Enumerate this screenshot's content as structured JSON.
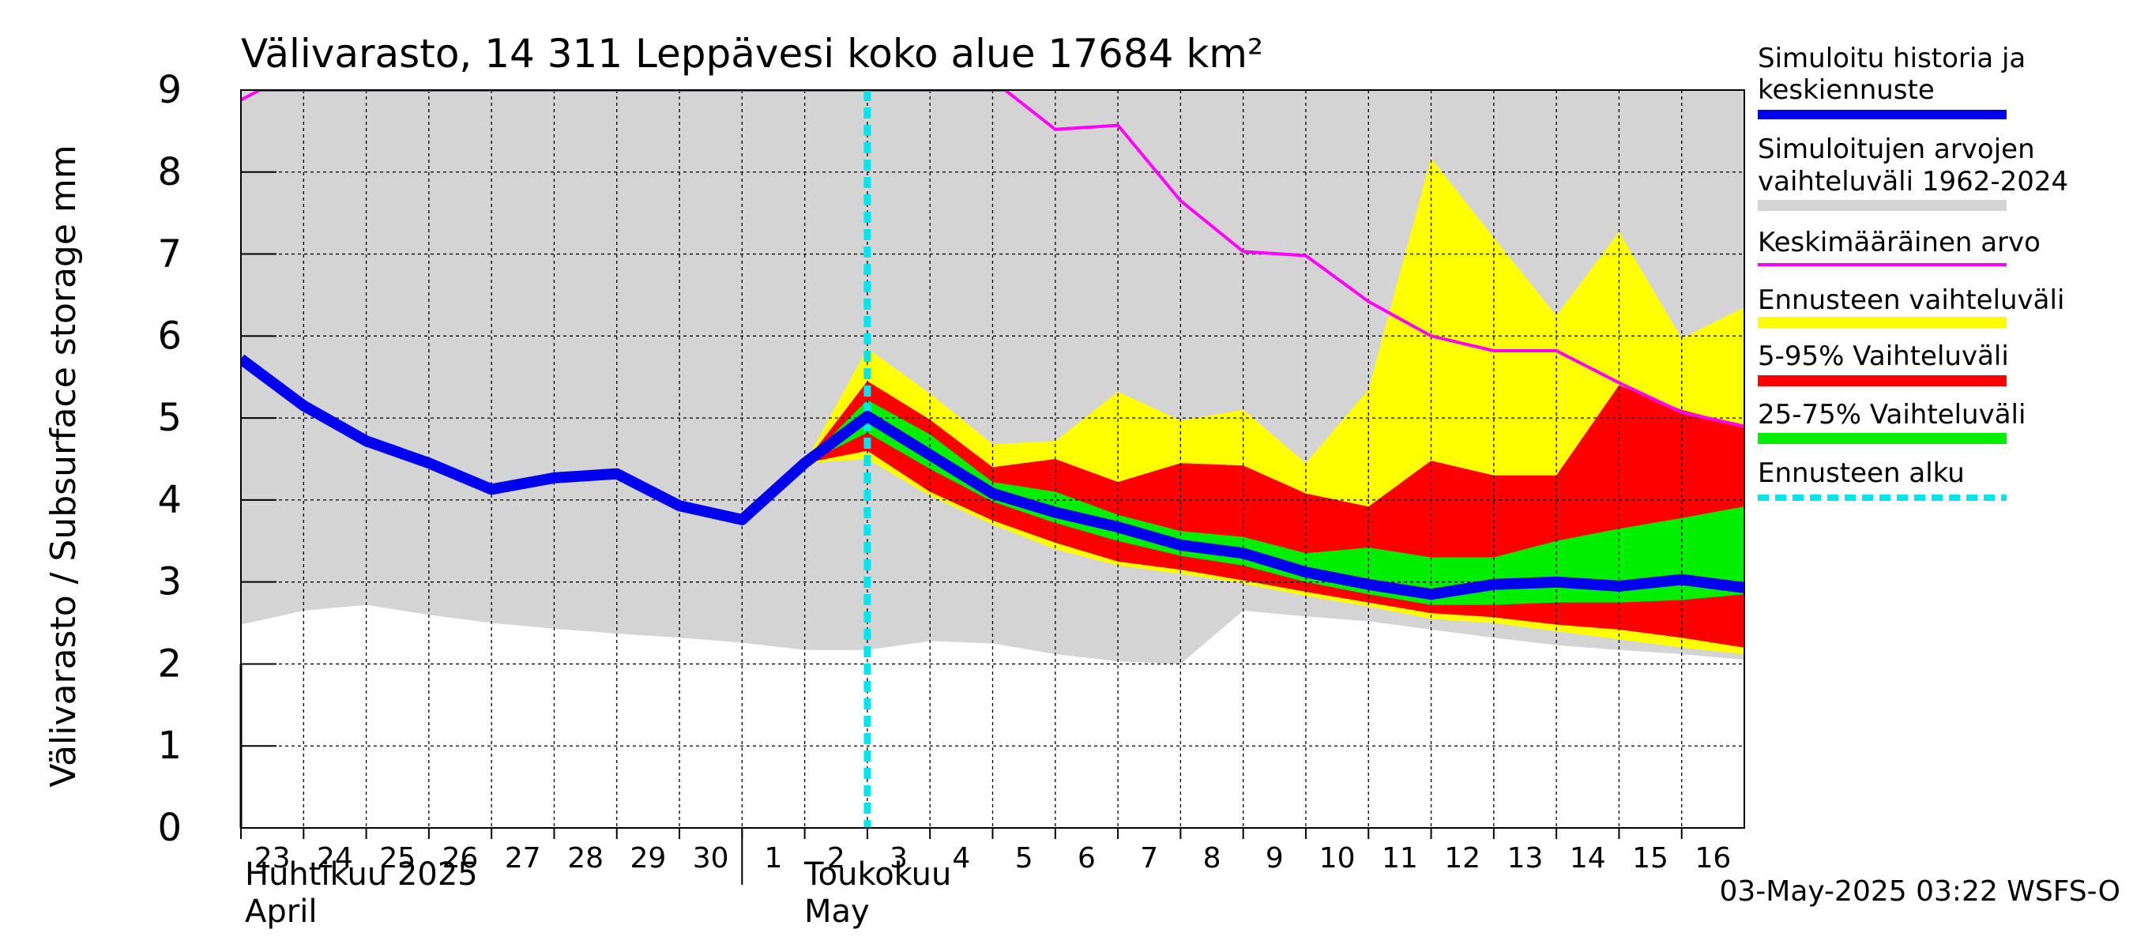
{
  "chart_data": {
    "type": "area",
    "title": "Välivarasto, 14 311 Leppävesi koko alue 17684 km²",
    "ylabel": "Välivarasto / Subsurface storage  mm",
    "ylim": [
      0,
      9
    ],
    "yticks": [
      "0",
      "1",
      "2",
      "3",
      "4",
      "5",
      "6",
      "7",
      "8",
      "9"
    ],
    "x_days": [
      "2025-04-23",
      "2025-04-24",
      "2025-04-25",
      "2025-04-26",
      "2025-04-27",
      "2025-04-28",
      "2025-04-29",
      "2025-04-30",
      "2025-05-01",
      "2025-05-02",
      "2025-05-03",
      "2025-05-04",
      "2025-05-05",
      "2025-05-06",
      "2025-05-07",
      "2025-05-08",
      "2025-05-09",
      "2025-05-10",
      "2025-05-11",
      "2025-05-12",
      "2025-05-13",
      "2025-05-14",
      "2025-05-15",
      "2025-05-16",
      "2025-05-17"
    ],
    "xtick_labels": [
      "23",
      "24",
      "25",
      "26",
      "27",
      "28",
      "29",
      "30",
      "1",
      "2",
      "3",
      "4",
      "5",
      "6",
      "7",
      "8",
      "9",
      "10",
      "11",
      "12",
      "13",
      "14",
      "15",
      "16"
    ],
    "month_labels": [
      {
        "fi": "Huhtikuu  2025",
        "en": "April"
      },
      {
        "fi": "Toukokuu",
        "en": "May"
      }
    ],
    "forecast_start": "2025-05-03",
    "grid": true,
    "legend_position": "right",
    "footer": "03-May-2025 03:22 WSFS-O",
    "legend": [
      {
        "label": "Simuloitu historia ja keskiennuste",
        "color": "#0000ee"
      },
      {
        "label": "Simuloitujen arvojen vaihteluväli 1962-2024",
        "color": "#d4d4d4"
      },
      {
        "label": "Keskimääräinen arvo",
        "color": "#ff00ff"
      },
      {
        "label": "Ennusteen vaihteluväli",
        "color": "#ffff00"
      },
      {
        "label": "5-95% Vaihteluväli",
        "color": "#ff0000"
      },
      {
        "label": "25-75% Vaihteluväli",
        "color": "#00ee00"
      },
      {
        "label": "Ennusteen alku",
        "color": "#00e5ee"
      }
    ],
    "series": [
      {
        "name": "Simuloitu historia ja keskiennuste",
        "x": [
          "2025-04-23",
          "2025-04-24",
          "2025-04-25",
          "2025-04-26",
          "2025-04-27",
          "2025-04-28",
          "2025-04-29",
          "2025-04-30",
          "2025-05-01",
          "2025-05-02",
          "2025-05-03",
          "2025-05-04",
          "2025-05-05",
          "2025-05-06",
          "2025-05-07",
          "2025-05-08",
          "2025-05-09",
          "2025-05-10",
          "2025-05-11",
          "2025-05-12",
          "2025-05-13",
          "2025-05-14",
          "2025-05-15",
          "2025-05-16",
          "2025-05-17"
        ],
        "values": [
          5.72,
          5.15,
          4.72,
          4.45,
          4.13,
          4.27,
          4.32,
          3.93,
          3.76,
          4.45,
          5.02,
          4.55,
          4.08,
          3.85,
          3.67,
          3.45,
          3.35,
          3.12,
          2.97,
          2.85,
          2.97,
          3.0,
          2.95,
          3.03,
          2.93
        ]
      },
      {
        "name": "Keskimääräinen arvo",
        "x": [
          "2025-04-23",
          "2025-04-23.3",
          "2025-05-05.2",
          "2025-05-06",
          "2025-05-07",
          "2025-05-08",
          "2025-05-09",
          "2025-05-10",
          "2025-05-11",
          "2025-05-12",
          "2025-05-13",
          "2025-05-14",
          "2025-05-15",
          "2025-05-16",
          "2025-05-17"
        ],
        "values": [
          8.88,
          9.0,
          9.0,
          8.52,
          8.57,
          7.65,
          7.03,
          6.98,
          6.42,
          6.0,
          5.82,
          5.82,
          5.43,
          5.07,
          4.9
        ]
      }
    ],
    "bands": [
      {
        "name": "Simuloitujen arvojen vaihteluväli 1962-2024",
        "x": [
          "2025-04-23",
          "2025-04-24",
          "2025-04-25",
          "2025-04-26",
          "2025-04-27",
          "2025-04-28",
          "2025-04-29",
          "2025-04-30",
          "2025-05-01",
          "2025-05-02",
          "2025-05-03",
          "2025-05-04",
          "2025-05-05",
          "2025-05-06",
          "2025-05-07",
          "2025-05-08",
          "2025-05-09",
          "2025-05-10",
          "2025-05-11",
          "2025-05-12",
          "2025-05-13",
          "2025-05-14",
          "2025-05-15",
          "2025-05-16",
          "2025-05-17"
        ],
        "lower": [
          2.48,
          2.65,
          2.72,
          2.6,
          2.5,
          2.43,
          2.37,
          2.32,
          2.26,
          2.17,
          2.17,
          2.28,
          2.25,
          2.12,
          2.03,
          2.0,
          2.65,
          2.58,
          2.52,
          2.42,
          2.32,
          2.23,
          2.17,
          2.12,
          2.05
        ],
        "upper": [
          9,
          9,
          9,
          9,
          9,
          9,
          9,
          9,
          9,
          9,
          9,
          9,
          9,
          9,
          9,
          9,
          9,
          9,
          9,
          9,
          9,
          9,
          9,
          9,
          9
        ]
      },
      {
        "name": "Ennusteen vaihteluväli",
        "x": [
          "2025-05-02",
          "2025-05-03",
          "2025-05-04",
          "2025-05-05",
          "2025-05-06",
          "2025-05-07",
          "2025-05-08",
          "2025-05-09",
          "2025-05-10",
          "2025-05-11",
          "2025-05-12",
          "2025-05-13",
          "2025-05-14",
          "2025-05-15",
          "2025-05-16",
          "2025-05-17"
        ],
        "lower": [
          4.45,
          4.5,
          4.05,
          3.7,
          3.4,
          3.2,
          3.1,
          2.98,
          2.83,
          2.7,
          2.55,
          2.5,
          2.4,
          2.3,
          2.2,
          2.12
        ],
        "upper": [
          4.45,
          5.85,
          5.3,
          4.68,
          4.72,
          5.32,
          4.97,
          5.1,
          4.45,
          5.35,
          8.17,
          7.2,
          6.25,
          7.27,
          5.97,
          6.35
        ]
      },
      {
        "name": "5-95% Vaihteluväli",
        "x": [
          "2025-05-02",
          "2025-05-03",
          "2025-05-04",
          "2025-05-05",
          "2025-05-06",
          "2025-05-07",
          "2025-05-08",
          "2025-05-09",
          "2025-05-10",
          "2025-05-11",
          "2025-05-12",
          "2025-05-13",
          "2025-05-14",
          "2025-05-15",
          "2025-05-16",
          "2025-05-17"
        ],
        "lower": [
          4.45,
          4.6,
          4.1,
          3.75,
          3.48,
          3.25,
          3.15,
          3.02,
          2.88,
          2.75,
          2.62,
          2.57,
          2.48,
          2.42,
          2.32,
          2.2
        ],
        "upper": [
          4.45,
          5.45,
          4.98,
          4.4,
          4.5,
          4.22,
          4.45,
          4.42,
          4.08,
          3.92,
          4.48,
          4.3,
          4.3,
          5.4,
          5.1,
          4.9
        ]
      },
      {
        "name": "25-75% Vaihteluväli",
        "x": [
          "2025-05-02",
          "2025-05-03",
          "2025-05-04",
          "2025-05-05",
          "2025-05-06",
          "2025-05-07",
          "2025-05-08",
          "2025-05-09",
          "2025-05-10",
          "2025-05-11",
          "2025-05-12",
          "2025-05-13",
          "2025-05-14",
          "2025-05-15",
          "2025-05-16",
          "2025-05-17"
        ],
        "lower": [
          4.45,
          4.82,
          4.38,
          3.98,
          3.72,
          3.5,
          3.32,
          3.2,
          3.0,
          2.85,
          2.72,
          2.72,
          2.75,
          2.75,
          2.78,
          2.85
        ],
        "upper": [
          4.45,
          5.22,
          4.8,
          4.22,
          4.1,
          3.82,
          3.62,
          3.55,
          3.35,
          3.42,
          3.3,
          3.3,
          3.5,
          3.65,
          3.78,
          3.92
        ]
      }
    ]
  }
}
